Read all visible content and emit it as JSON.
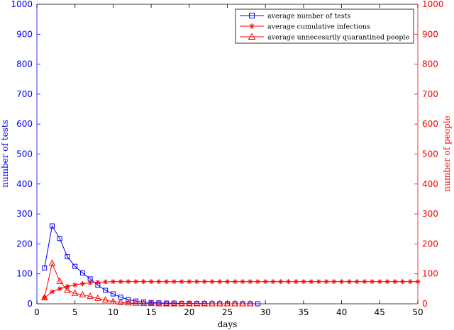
{
  "chart_data": {
    "type": "line",
    "xlabel": "days",
    "ylabel_left": "number of tests",
    "ylabel_right": "number of people",
    "xlim": [
      0,
      50
    ],
    "ylim_left": [
      0,
      1000
    ],
    "ylim_right": [
      0,
      1000
    ],
    "x_ticks": [
      "0",
      "5",
      "10",
      "15",
      "20",
      "25",
      "30",
      "35",
      "40",
      "45",
      "50"
    ],
    "y_ticks_left": [
      "0",
      "100",
      "200",
      "300",
      "400",
      "500",
      "600",
      "700",
      "800",
      "900",
      "1000"
    ],
    "y_ticks_right": [
      "0",
      "100",
      "200",
      "300",
      "400",
      "500",
      "600",
      "700",
      "800",
      "900",
      "1000"
    ],
    "grid": false,
    "legend_position": "top-right",
    "colors": {
      "left_axis": "#0000ff",
      "right_axis": "#ff0000"
    },
    "series": [
      {
        "name": "average number of tests",
        "axis": "left",
        "color": "#0000ff",
        "marker": "square",
        "x": [
          1,
          2,
          3,
          4,
          5,
          6,
          7,
          8,
          9,
          10,
          11,
          12,
          13,
          14,
          15,
          16,
          17,
          18,
          19,
          20,
          21,
          22,
          23,
          24,
          25,
          26,
          27,
          28,
          29
        ],
        "values": [
          120,
          260,
          218,
          157,
          125,
          103,
          83,
          62,
          45,
          33,
          22,
          14,
          9,
          6,
          4,
          3,
          2,
          2,
          1,
          1,
          1,
          1,
          0,
          0,
          0,
          0,
          0,
          0,
          0
        ]
      },
      {
        "name": "average cumulative infections",
        "axis": "right",
        "color": "#ff0000",
        "marker": "asterisk",
        "x": [
          1,
          2,
          3,
          4,
          5,
          6,
          7,
          8,
          9,
          10,
          11,
          12,
          13,
          14,
          15,
          16,
          17,
          18,
          19,
          20,
          21,
          22,
          23,
          24,
          25,
          26,
          27,
          28,
          29,
          30,
          31,
          32,
          33,
          34,
          35,
          36,
          37,
          38,
          39,
          40,
          41,
          42,
          43,
          44,
          45,
          46,
          47,
          48,
          49,
          50
        ],
        "values": [
          20,
          40,
          50,
          58,
          63,
          67,
          70,
          72,
          73,
          74,
          74,
          74,
          74,
          74,
          74,
          74,
          74,
          74,
          74,
          74,
          74,
          74,
          74,
          74,
          74,
          74,
          74,
          74,
          74,
          74,
          74,
          74,
          74,
          74,
          74,
          74,
          74,
          74,
          74,
          74,
          74,
          74,
          74,
          74,
          74,
          74,
          74,
          74,
          74,
          74
        ]
      },
      {
        "name": "average unnecesarily quarantined people",
        "axis": "right",
        "color": "#ff0000",
        "marker": "triangle",
        "x": [
          1,
          2,
          3,
          4,
          5,
          6,
          7,
          8,
          9,
          10,
          11,
          12,
          13,
          14,
          15,
          16,
          17,
          18,
          19,
          20,
          21,
          22,
          23,
          24,
          25,
          26,
          27,
          28
        ],
        "values": [
          20,
          135,
          75,
          45,
          35,
          30,
          25,
          18,
          12,
          7,
          5,
          3,
          2,
          1,
          1,
          0,
          0,
          0,
          0,
          0,
          0,
          0,
          0,
          0,
          0,
          0,
          0,
          0
        ]
      }
    ]
  }
}
